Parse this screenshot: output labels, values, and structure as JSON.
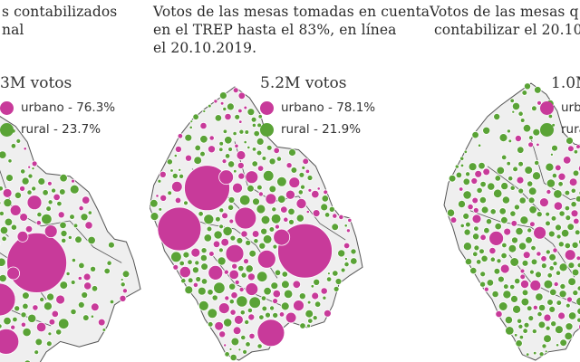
{
  "colors": {
    "urban": "#c83a9a",
    "rural": "#5aa336",
    "land": "#efefef",
    "border": "#555555"
  },
  "panels": {
    "left": {
      "title": "s contabilizados\nnal",
      "total": "3M votos",
      "legend": [
        {
          "label": "urbano - 76.3%",
          "color": "#c83a9a"
        },
        {
          "label": "rural - 23.7%",
          "color": "#5aa336"
        }
      ]
    },
    "mid": {
      "title": "Votos de las mesas tomadas en cuenta\nen el TREP hasta el 83%, en línea\nel 20.10.2019.",
      "total": "5.2M votos",
      "legend": [
        {
          "label": "urbano - 78.1%",
          "color": "#c83a9a"
        },
        {
          "label": "rural - 21.9%",
          "color": "#5aa336"
        }
      ]
    },
    "right": {
      "title": "Votos de las mesas q\n contabilizar el 20.10",
      "total": "1.0M",
      "legend": [
        {
          "label": "urba",
          "color": "#c83a9a"
        },
        {
          "label": "rura",
          "color": "#5aa336"
        }
      ]
    }
  }
}
